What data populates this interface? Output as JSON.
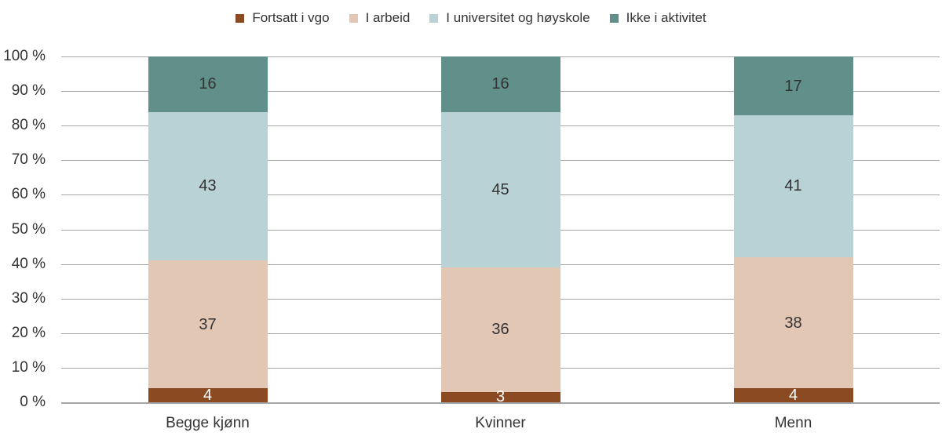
{
  "chart_data": {
    "type": "bar",
    "variant": "stacked-100-percent",
    "title": "",
    "categories": [
      "Begge kjønn",
      "Kvinner",
      "Menn"
    ],
    "series": [
      {
        "name": "Fortsatt i vgo",
        "color": "#8C4A22",
        "label_color": "#FFFFFF",
        "values": [
          4,
          3,
          4
        ]
      },
      {
        "name": "I arbeid",
        "color": "#E3C7B5",
        "label_color": "#333333",
        "values": [
          37,
          36,
          38
        ]
      },
      {
        "name": "I universitet og høyskole",
        "color": "#B9D2D5",
        "label_color": "#333333",
        "values": [
          43,
          45,
          41
        ]
      },
      {
        "name": "Ikke i aktivitet",
        "color": "#61908A",
        "label_color": "#333333",
        "values": [
          16,
          16,
          17
        ]
      }
    ],
    "y_axis": {
      "min": 0,
      "max": 100,
      "step": 10,
      "tick_labels": [
        "0 %",
        "10 %",
        "20 %",
        "30 %",
        "40 %",
        "50 %",
        "60 %",
        "70 %",
        "80 %",
        "90 %",
        "100 %"
      ]
    },
    "legend_position": "top",
    "grid": {
      "show": true,
      "color": "#A6A6A6"
    },
    "axis_line_color": "#A6A6A6",
    "text_color": "#333333",
    "data_labels": "shown-inside-segments"
  }
}
